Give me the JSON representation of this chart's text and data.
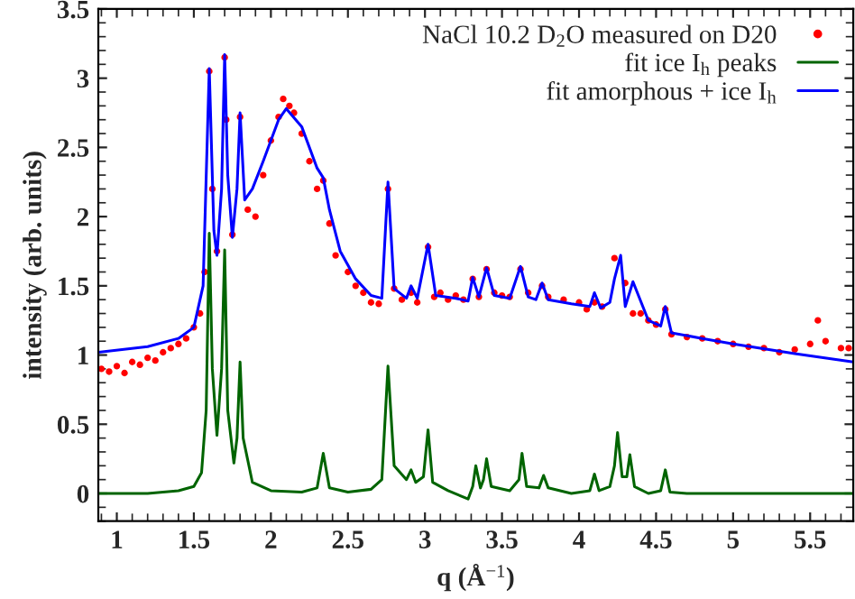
{
  "chart_data": {
    "type": "line",
    "xlabel": "q (Å$^{−1}$)",
    "ylabel": "intensity (arb. units)",
    "xlim": [
      0.88,
      5.78
    ],
    "ylim": [
      -0.2,
      3.5
    ],
    "xticks": [
      1,
      1.5,
      2,
      2.5,
      3,
      3.5,
      4,
      4.5,
      5,
      5.5
    ],
    "yticks": [
      0,
      0.5,
      1,
      1.5,
      2,
      2.5,
      3,
      3.5
    ],
    "grid": false,
    "legend": "top right",
    "series": [
      {
        "name": "NaCl 10.2 D$_{2}$O measured on D20",
        "type": "scatter",
        "color": "#ff0000",
        "marker": "circle",
        "x": [
          0.9,
          0.95,
          1.0,
          1.05,
          1.1,
          1.15,
          1.2,
          1.25,
          1.3,
          1.35,
          1.4,
          1.45,
          1.5,
          1.54,
          1.57,
          1.6,
          1.62,
          1.65,
          1.7,
          1.71,
          1.75,
          1.8,
          1.85,
          1.9,
          1.95,
          2.0,
          2.05,
          2.08,
          2.12,
          2.15,
          2.2,
          2.25,
          2.3,
          2.34,
          2.38,
          2.42,
          2.5,
          2.55,
          2.6,
          2.65,
          2.7,
          2.76,
          2.8,
          2.85,
          2.91,
          2.95,
          3.02,
          3.06,
          3.1,
          3.15,
          3.2,
          3.25,
          3.31,
          3.35,
          3.4,
          3.45,
          3.5,
          3.55,
          3.62,
          3.67,
          3.76,
          3.8,
          3.9,
          4.0,
          4.05,
          4.1,
          4.15,
          4.23,
          4.3,
          4.35,
          4.4,
          4.45,
          4.5,
          4.56,
          4.6,
          4.7,
          4.8,
          4.9,
          5.0,
          5.1,
          5.2,
          5.3,
          5.4,
          5.5,
          5.55,
          5.6,
          5.7,
          5.75
        ],
        "values": [
          0.9,
          0.88,
          0.92,
          0.87,
          0.95,
          0.93,
          0.98,
          0.96,
          1.02,
          1.05,
          1.08,
          1.12,
          1.2,
          1.3,
          1.6,
          3.05,
          2.2,
          1.75,
          3.15,
          2.7,
          1.87,
          2.72,
          2.05,
          2.0,
          2.3,
          2.55,
          2.72,
          2.85,
          2.8,
          2.75,
          2.6,
          2.4,
          2.2,
          2.26,
          1.95,
          1.72,
          1.6,
          1.5,
          1.45,
          1.38,
          1.37,
          2.2,
          1.48,
          1.4,
          1.45,
          1.38,
          1.78,
          1.42,
          1.45,
          1.4,
          1.43,
          1.4,
          1.55,
          1.42,
          1.62,
          1.45,
          1.43,
          1.42,
          1.62,
          1.45,
          1.5,
          1.42,
          1.4,
          1.38,
          1.33,
          1.38,
          1.35,
          1.7,
          1.52,
          1.3,
          1.3,
          1.25,
          1.22,
          1.33,
          1.15,
          1.13,
          1.12,
          1.1,
          1.08,
          1.06,
          1.05,
          1.02,
          1.04,
          1.08,
          1.25,
          1.1,
          1.05,
          1.05
        ]
      },
      {
        "name": "fit ice I$_{h}$ peaks",
        "color": "#006400",
        "marker": "none",
        "x": [
          0.88,
          1.2,
          1.4,
          1.5,
          1.55,
          1.58,
          1.6,
          1.62,
          1.65,
          1.68,
          1.7,
          1.72,
          1.76,
          1.78,
          1.8,
          1.82,
          1.88,
          2.0,
          2.2,
          2.3,
          2.34,
          2.38,
          2.5,
          2.65,
          2.72,
          2.76,
          2.8,
          2.88,
          2.91,
          2.94,
          2.99,
          3.02,
          3.05,
          3.15,
          3.28,
          3.31,
          3.33,
          3.36,
          3.38,
          3.4,
          3.43,
          3.55,
          3.61,
          3.63,
          3.66,
          3.74,
          3.77,
          3.8,
          3.95,
          4.07,
          4.1,
          4.13,
          4.2,
          4.23,
          4.25,
          4.28,
          4.31,
          4.33,
          4.36,
          4.45,
          4.53,
          4.56,
          4.59,
          4.7,
          5.78
        ],
        "values": [
          0.0,
          0.0,
          0.02,
          0.05,
          0.15,
          0.6,
          1.88,
          0.9,
          0.42,
          0.9,
          1.76,
          0.6,
          0.22,
          0.4,
          0.95,
          0.4,
          0.08,
          0.02,
          0.01,
          0.04,
          0.29,
          0.04,
          0.01,
          0.03,
          0.1,
          0.92,
          0.2,
          0.1,
          0.17,
          0.08,
          0.12,
          0.46,
          0.08,
          0.02,
          -0.04,
          0.05,
          0.2,
          0.04,
          0.1,
          0.25,
          0.05,
          0.02,
          0.1,
          0.29,
          0.05,
          0.04,
          0.13,
          0.04,
          0.0,
          0.02,
          0.14,
          0.02,
          0.05,
          0.2,
          0.44,
          0.12,
          0.12,
          0.28,
          0.05,
          0.0,
          0.02,
          0.17,
          0.01,
          0.0,
          0.0
        ]
      },
      {
        "name": "fit amorphous + ice I$_{h}$",
        "color": "#0000ff",
        "marker": "none",
        "x": [
          0.88,
          1.2,
          1.4,
          1.5,
          1.56,
          1.6,
          1.63,
          1.65,
          1.68,
          1.7,
          1.72,
          1.75,
          1.78,
          1.8,
          1.83,
          1.88,
          1.95,
          2.05,
          2.1,
          2.2,
          2.3,
          2.34,
          2.38,
          2.45,
          2.55,
          2.65,
          2.72,
          2.76,
          2.8,
          2.88,
          2.91,
          2.95,
          3.02,
          3.07,
          3.2,
          3.28,
          3.31,
          3.35,
          3.4,
          3.45,
          3.55,
          3.62,
          3.67,
          3.72,
          3.76,
          3.8,
          3.95,
          4.07,
          4.1,
          4.14,
          4.2,
          4.23,
          4.27,
          4.3,
          4.35,
          4.45,
          4.53,
          4.56,
          4.6,
          4.8,
          5.0,
          5.4,
          5.78
        ],
        "values": [
          1.02,
          1.06,
          1.12,
          1.2,
          1.5,
          3.07,
          1.9,
          1.72,
          2.2,
          3.17,
          2.3,
          1.85,
          2.2,
          2.75,
          2.12,
          2.2,
          2.4,
          2.7,
          2.78,
          2.65,
          2.35,
          2.28,
          2.05,
          1.75,
          1.55,
          1.43,
          1.41,
          2.25,
          1.48,
          1.41,
          1.5,
          1.41,
          1.8,
          1.43,
          1.41,
          1.39,
          1.56,
          1.42,
          1.63,
          1.43,
          1.41,
          1.64,
          1.42,
          1.4,
          1.52,
          1.4,
          1.37,
          1.35,
          1.45,
          1.34,
          1.38,
          1.55,
          1.72,
          1.35,
          1.53,
          1.25,
          1.21,
          1.35,
          1.16,
          1.12,
          1.08,
          1.01,
          0.95
        ]
      }
    ]
  }
}
